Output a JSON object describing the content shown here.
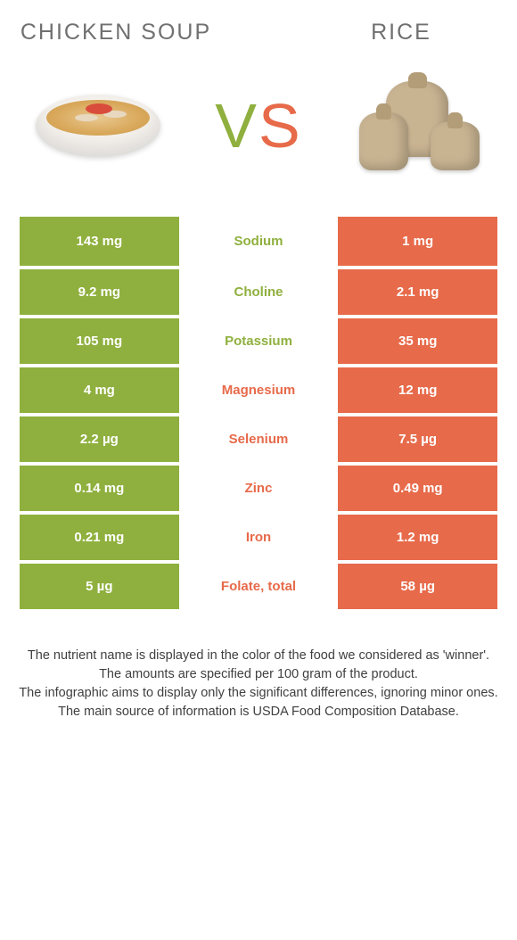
{
  "colors": {
    "green": "#8fb03e",
    "orange": "#e76a4a",
    "white": "#ffffff",
    "text": "#404040",
    "title": "#707070"
  },
  "header": {
    "left_title": "CHICKEN SOUP",
    "right_title": "RICE",
    "vs_v": "V",
    "vs_s": "S"
  },
  "rows": [
    {
      "left": "143 mg",
      "mid": "Sodium",
      "right": "1 mg",
      "winner": "left"
    },
    {
      "left": "9.2 mg",
      "mid": "Choline",
      "right": "2.1 mg",
      "winner": "left"
    },
    {
      "left": "105 mg",
      "mid": "Potassium",
      "right": "35 mg",
      "winner": "left"
    },
    {
      "left": "4 mg",
      "mid": "Magnesium",
      "right": "12 mg",
      "winner": "right"
    },
    {
      "left": "2.2 µg",
      "mid": "Selenium",
      "right": "7.5 µg",
      "winner": "right"
    },
    {
      "left": "0.14 mg",
      "mid": "Zinc",
      "right": "0.49 mg",
      "winner": "right"
    },
    {
      "left": "0.21 mg",
      "mid": "Iron",
      "right": "1.2 mg",
      "winner": "right"
    },
    {
      "left": "5 µg",
      "mid": "Folate, total",
      "right": "58 µg",
      "winner": "right"
    }
  ],
  "footnote": {
    "l1": "The nutrient name is displayed in the color of the food we considered as 'winner'.",
    "l2": "The amounts are specified per 100 gram of the product.",
    "l3": "The infographic aims to display only the significant differences, ignoring minor ones.",
    "l4": "The main source of information is USDA Food Composition Database."
  }
}
